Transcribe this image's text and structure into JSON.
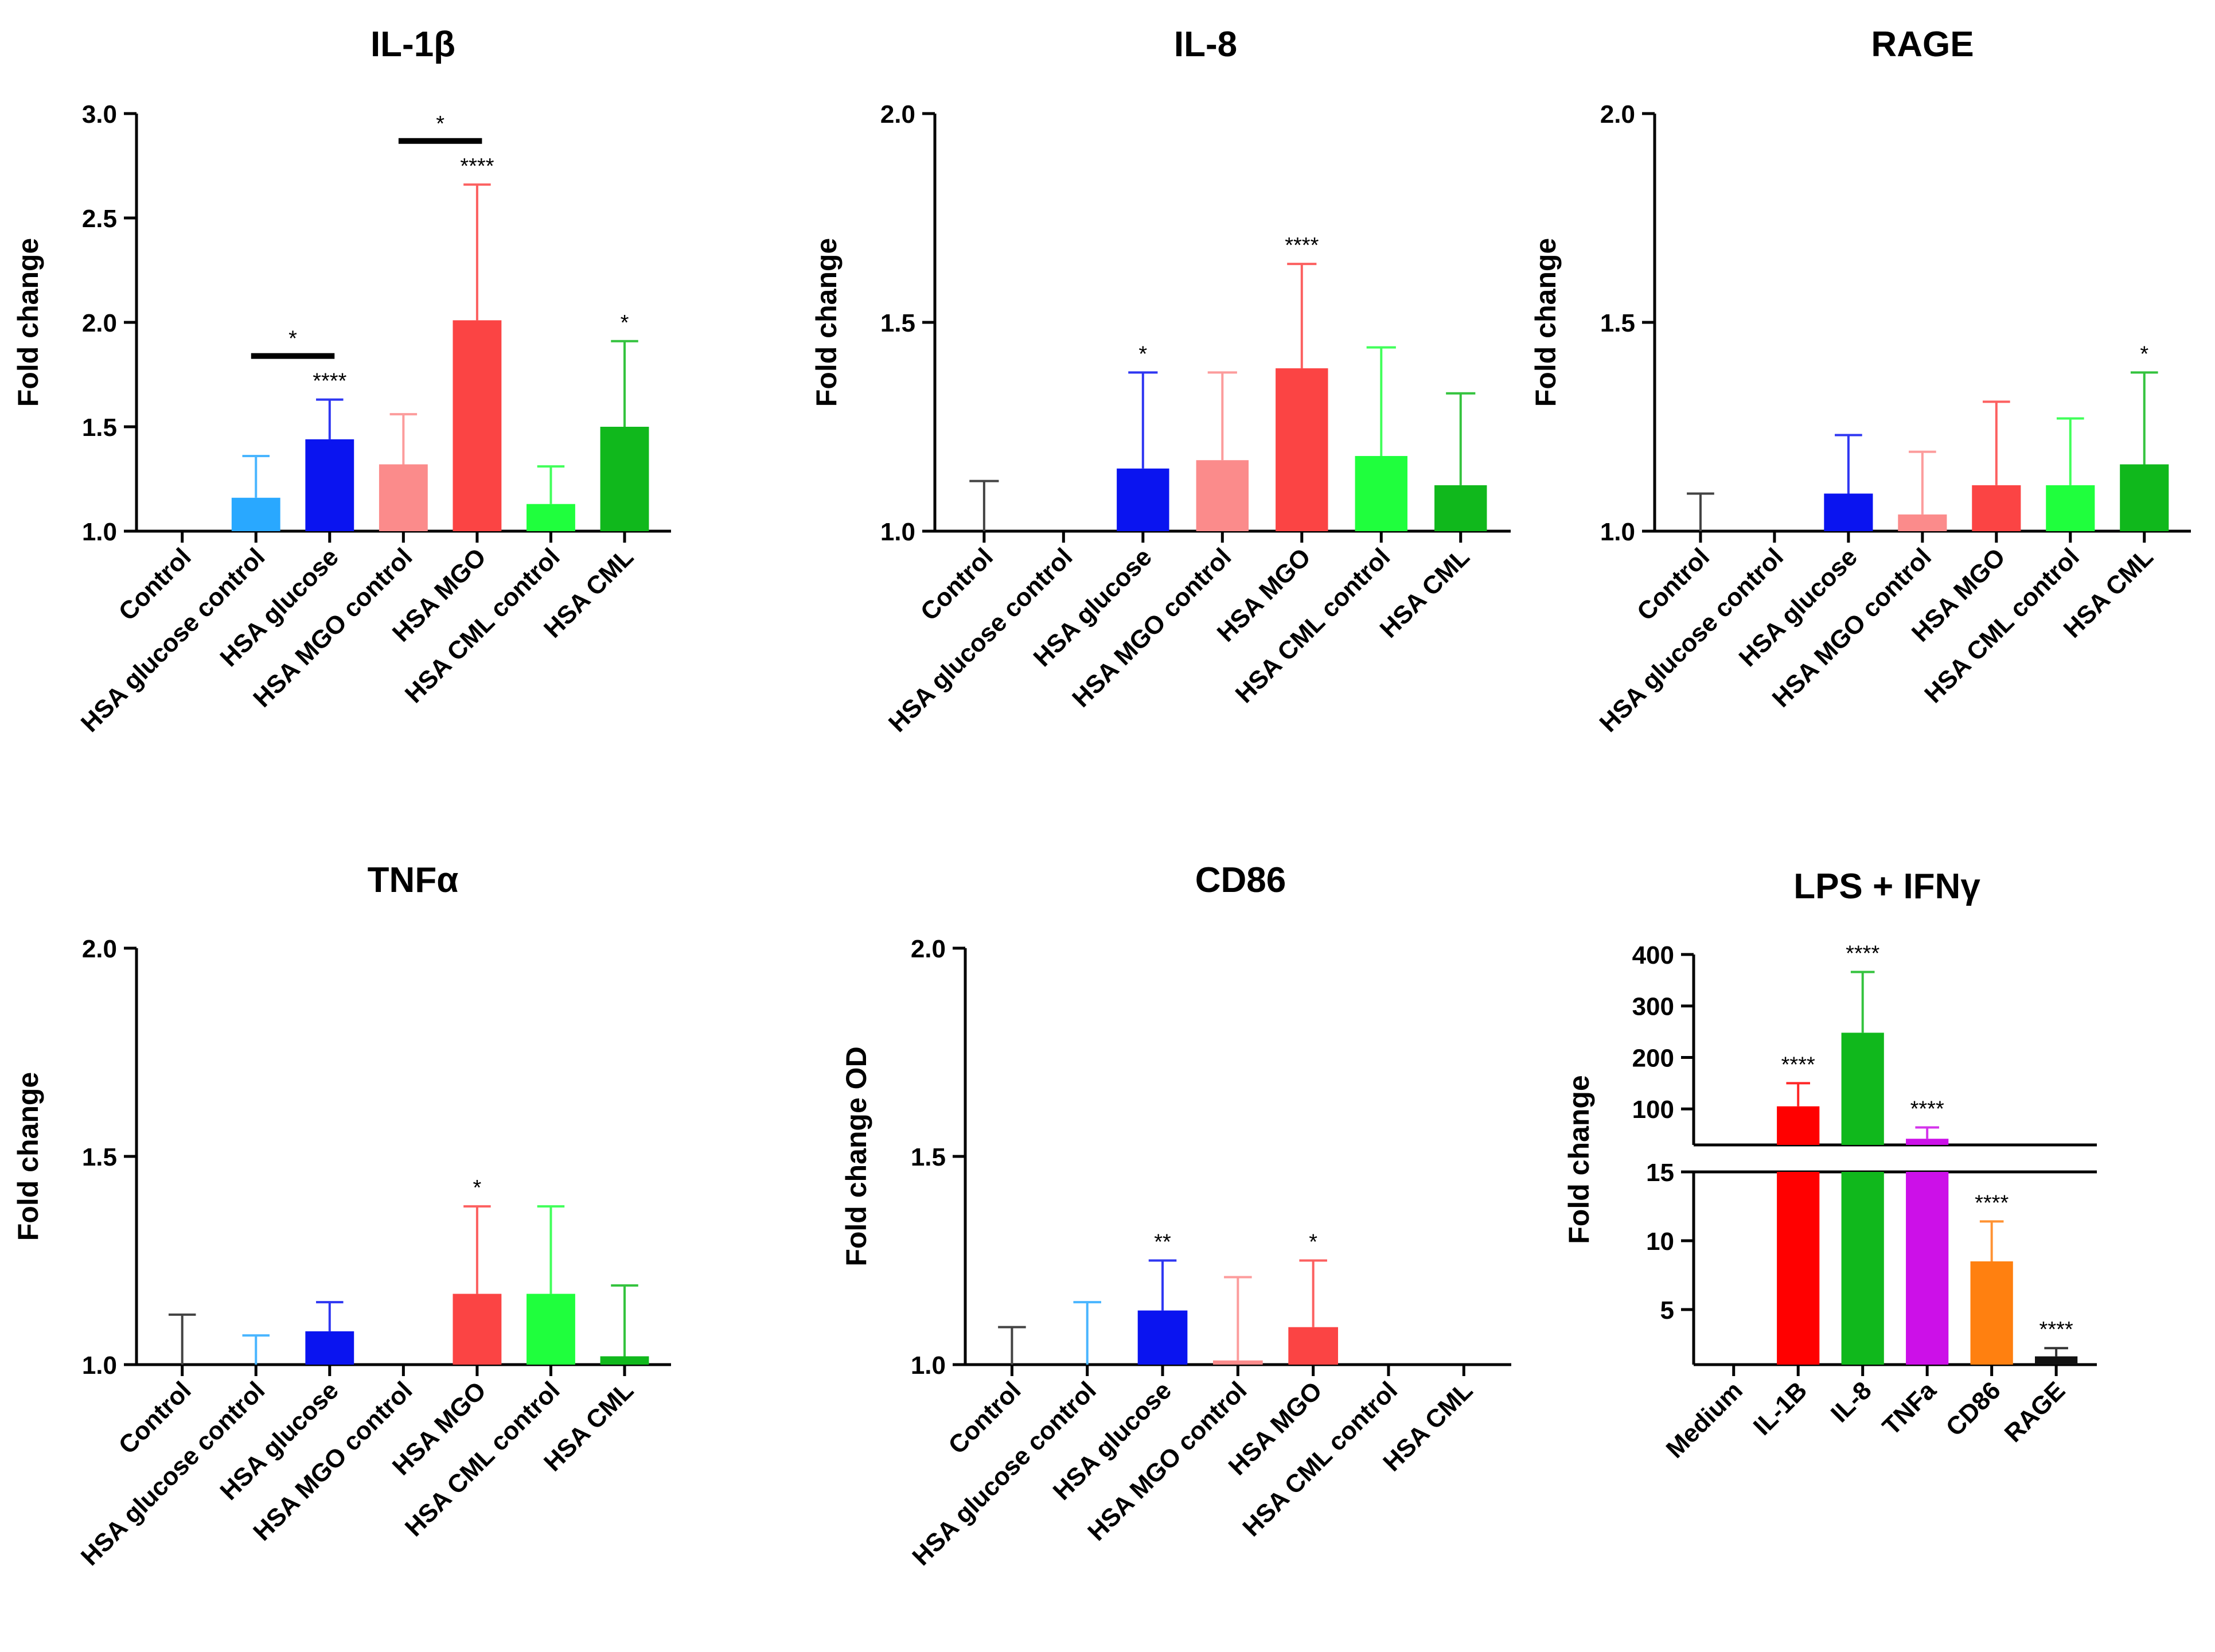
{
  "chart_data": [
    {
      "type": "bar",
      "title": "IL-1β",
      "ylabel": "Fold change",
      "ylim": [
        1.0,
        3.0
      ],
      "yticks": [
        1.0,
        1.5,
        2.0,
        2.5,
        3.0
      ],
      "tick_format": "0.0",
      "categories": [
        "Control",
        "HSA glucose control",
        "HSA glucose",
        "HSA MGO control",
        "HSA MGO",
        "HSA CML control",
        "HSA CML"
      ],
      "values": [
        1.0,
        1.16,
        1.44,
        1.32,
        2.01,
        1.13,
        1.5
      ],
      "errors": [
        0.0,
        0.2,
        0.19,
        0.24,
        0.65,
        0.18,
        0.41
      ],
      "colors": [
        "#222222",
        "#29a8ff",
        "#0a14f0",
        "#fb8b8b",
        "#fb4444",
        "#1fff3d",
        "#10b81c"
      ],
      "significance": [
        "",
        "",
        "****",
        "",
        "****",
        "",
        "*"
      ],
      "comparisons": [
        {
          "from": 1,
          "to": 2,
          "label": "*"
        },
        {
          "from": 3,
          "to": 4,
          "label": "*"
        }
      ]
    },
    {
      "type": "bar",
      "title": "IL-8",
      "ylabel": "Fold change",
      "ylim": [
        1.0,
        2.0
      ],
      "yticks": [
        1.0,
        1.5,
        2.0
      ],
      "tick_format": "0.0",
      "categories": [
        "Control",
        "HSA glucose control",
        "HSA glucose",
        "HSA MGO control",
        "HSA MGO",
        "HSA CML control",
        "HSA CML"
      ],
      "values": [
        1.0,
        1.0,
        1.15,
        1.17,
        1.39,
        1.18,
        1.11
      ],
      "errors": [
        0.12,
        0.0,
        0.23,
        0.21,
        0.25,
        0.26,
        0.22
      ],
      "colors": [
        "#222222",
        "#29a8ff",
        "#0a14f0",
        "#fb8b8b",
        "#fb4444",
        "#1fff3d",
        "#10b81c"
      ],
      "significance": [
        "",
        "",
        "*",
        "",
        "****",
        "",
        ""
      ],
      "comparisons": []
    },
    {
      "type": "bar",
      "title": "RAGE",
      "ylabel": "Fold change",
      "ylim": [
        1.0,
        2.0
      ],
      "yticks": [
        1.0,
        1.5,
        2.0
      ],
      "tick_format": "0.0",
      "categories": [
        "Control",
        "HSA glucose control",
        "HSA glucose",
        "HSA MGO control",
        "HSA MGO",
        "HSA CML control",
        "HSA CML"
      ],
      "values": [
        1.0,
        1.0,
        1.09,
        1.04,
        1.11,
        1.11,
        1.16
      ],
      "errors": [
        0.09,
        0.0,
        0.14,
        0.15,
        0.2,
        0.16,
        0.22
      ],
      "colors": [
        "#222222",
        "#29a8ff",
        "#0a14f0",
        "#fb8b8b",
        "#fb4444",
        "#1fff3d",
        "#10b81c"
      ],
      "significance": [
        "",
        "",
        "",
        "",
        "",
        "",
        "*"
      ],
      "comparisons": []
    },
    {
      "type": "bar",
      "title": "TNFα",
      "ylabel": "Fold change",
      "ylim": [
        1.0,
        2.0
      ],
      "yticks": [
        1.0,
        1.5,
        2.0
      ],
      "tick_format": "0.0",
      "categories": [
        "Control",
        "HSA glucose control",
        "HSA glucose",
        "HSA MGO control",
        "HSA MGO",
        "HSA CML control",
        "HSA CML"
      ],
      "values": [
        1.0,
        1.0,
        1.08,
        1.0,
        1.17,
        1.17,
        1.02
      ],
      "errors": [
        0.12,
        0.07,
        0.07,
        0.0,
        0.21,
        0.21,
        0.17
      ],
      "colors": [
        "#222222",
        "#29a8ff",
        "#0a14f0",
        "#fb8b8b",
        "#fb4444",
        "#1fff3d",
        "#10b81c"
      ],
      "significance": [
        "",
        "",
        "",
        "",
        "*",
        "",
        ""
      ],
      "comparisons": []
    },
    {
      "type": "bar",
      "title": "CD86",
      "ylabel": "Fold change OD",
      "ylim": [
        1.0,
        2.0
      ],
      "yticks": [
        1.0,
        1.5,
        2.0
      ],
      "tick_format": "0.0",
      "categories": [
        "Control",
        "HSA glucose control",
        "HSA glucose",
        "HSA MGO control",
        "HSA MGO",
        "HSA CML control",
        "HSA CML"
      ],
      "values": [
        1.0,
        1.0,
        1.13,
        1.01,
        1.09,
        1.0,
        1.0
      ],
      "errors": [
        0.09,
        0.15,
        0.12,
        0.2,
        0.16,
        0.0,
        0.0
      ],
      "colors": [
        "#222222",
        "#29a8ff",
        "#0a14f0",
        "#fb8b8b",
        "#fb4444",
        "#1fff3d",
        "#10b81c"
      ],
      "significance": [
        "",
        "",
        "**",
        "",
        "*",
        "",
        ""
      ],
      "comparisons": []
    },
    {
      "type": "bar",
      "title": "LPS + IFNγ",
      "ylabel": "Fold change",
      "broken_axis": true,
      "lower_ylim": [
        1,
        15
      ],
      "lower_yticks": [
        5,
        10,
        15
      ],
      "upper_ylim": [
        30,
        400
      ],
      "upper_yticks": [
        100,
        200,
        300,
        400
      ],
      "tick_format": "0",
      "categories": [
        "Medium",
        "IL-1B",
        "IL-8",
        "TNFa",
        "CD86",
        "RAGE"
      ],
      "values": [
        1.0,
        105,
        248,
        42,
        8.5,
        1.6
      ],
      "errors": [
        0.0,
        45,
        118,
        22,
        2.9,
        0.6
      ],
      "colors": [
        "#2222dd",
        "#ff0000",
        "#10b81c",
        "#cc10e8",
        "#ff8010",
        "#111111"
      ],
      "significance": [
        "",
        "****",
        "****",
        "****",
        "****",
        "****"
      ],
      "comparisons": []
    }
  ]
}
